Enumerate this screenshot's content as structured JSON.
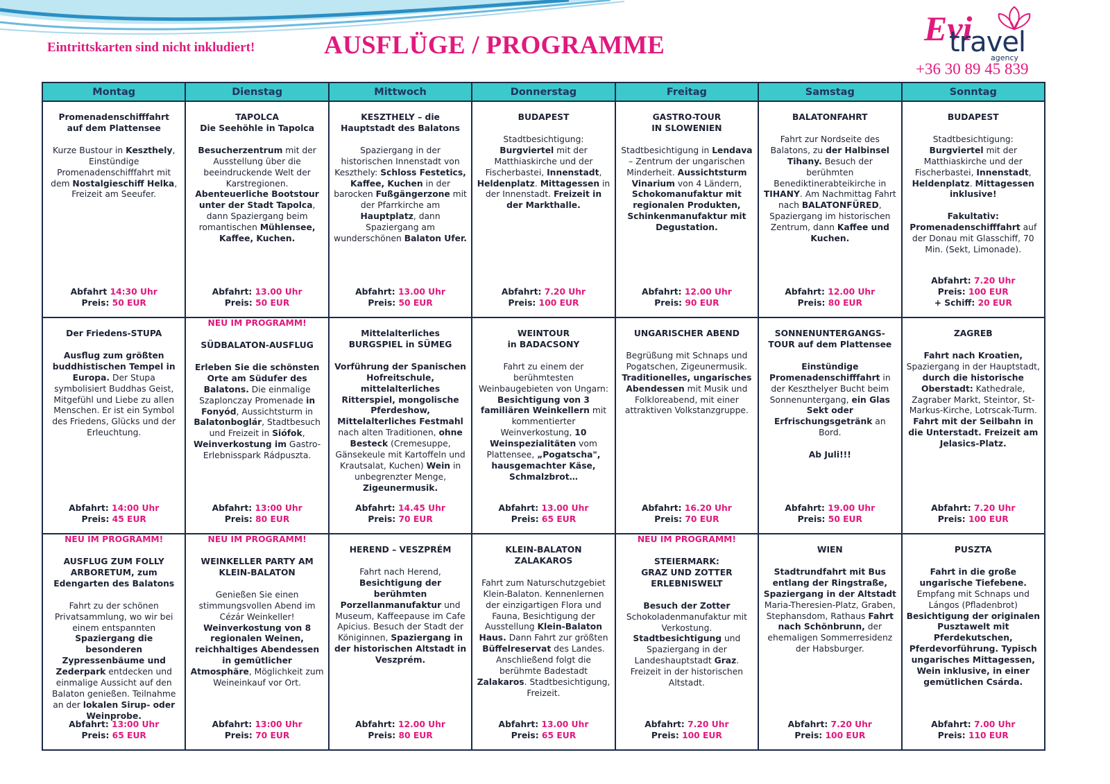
{
  "header": {
    "note": "Eintrittskarten sind nicht inkludiert!",
    "title": "AUSFLÜGE / PROGRAMME",
    "logo": {
      "name": "Evi",
      "brand": "travel",
      "sub": "agency"
    },
    "phone": "+36 30 89 45 839"
  },
  "table": {
    "days": [
      "Montag",
      "Dienstag",
      "Mittwoch",
      "Donnerstag",
      "Freitag",
      "Samstag",
      "Sonntag"
    ],
    "rows": [
      [
        {
          "title": [
            "Promenadenschifffahrt",
            "auf dem Plattensee"
          ],
          "body": [
            [
              "Kurze Bustour in ",
              {
                "b": "Keszthely"
              },
              ", Einstündige Promenadenschifffahrt mit dem ",
              {
                "b": "Nostalgieschiff Helka"
              },
              ", Freizeit am Seeufer."
            ]
          ],
          "depart": {
            "label": "Abfahrt",
            "value": "14:30 Uhr"
          },
          "price": [
            {
              "label": "Preis:",
              "value": "50 EUR"
            }
          ]
        },
        {
          "title": [
            "TAPOLCA",
            "Die Seehöhle in Tapolca"
          ],
          "body": [
            [
              {
                "b": "Besucherzentrum"
              },
              " mit der Ausstellung über die beeindruckende Welt der Karstregionen. ",
              {
                "b": "Abenteuerliche Bootstour unter der Stadt Tapolca"
              },
              ", dann Spaziergang beim romantischen ",
              {
                "b": "Mühlensee, Kaffee, Kuchen."
              }
            ]
          ],
          "depart": {
            "label": "Abfahrt:",
            "value": "13.00 Uhr"
          },
          "price": [
            {
              "label": "Preis:",
              "value": "50 EUR"
            }
          ]
        },
        {
          "title": [
            "KESZTHELY – die",
            "Hauptstadt des Balatons"
          ],
          "body": [
            [
              "Spaziergang in der historischen Innenstadt von Keszthely: ",
              {
                "b": "Schloss Festetics, Kaffee, Kuchen"
              },
              " in der barocken ",
              {
                "b": "Fußgängerzone"
              },
              " mit der Pfarrkirche am ",
              {
                "b": "Hauptplatz"
              },
              ", dann Spaziergang am wunderschönen ",
              {
                "b": "Balaton Ufer."
              }
            ]
          ],
          "depart": {
            "label": "Abfahrt:",
            "value": "13.00 Uhr"
          },
          "price": [
            {
              "label": "Preis:",
              "value": "50 EUR"
            }
          ]
        },
        {
          "title": [
            "BUDAPEST"
          ],
          "body": [
            [
              "Stadtbesichtigung: ",
              {
                "b": "Burgviertel"
              },
              " mit der Matthiaskirche und der Fischerbastei, ",
              {
                "b": "Innenstadt"
              },
              ", ",
              {
                "b": "Heldenplatz"
              },
              ". ",
              {
                "b": "Mittagessen"
              },
              " in der Innenstadt. ",
              {
                "b": "Freizeit in der Markthalle."
              }
            ]
          ],
          "depart": {
            "label": "Abfahrt:",
            "value": "7.20 Uhr"
          },
          "price": [
            {
              "label": "Preis:",
              "value": "100 EUR"
            }
          ]
        },
        {
          "title": [
            "GASTRO-TOUR",
            "IN SLOWENIEN"
          ],
          "body": [
            [
              "Stadtbesichtigung in ",
              {
                "b": "Lendava"
              },
              " – Zentrum der ungarischen Minderheit. ",
              {
                "b": "Aussichtsturm Vinarium"
              },
              " von 4 Ländern, ",
              {
                "b": "Schokomanufaktur mit regionalen Produkten, Schinkenmanufaktur mit Degustation."
              }
            ]
          ],
          "depart": {
            "label": "Abfahrt:",
            "value": "12.00 Uhr"
          },
          "price": [
            {
              "label": "Preis:",
              "value": "90 EUR"
            }
          ]
        },
        {
          "title": [
            "BALATONFAHRT"
          ],
          "body": [
            [
              "Fahrt zur Nordseite des Balatons, zu ",
              {
                "b": "der Halbinsel Tihany."
              },
              " Besuch der berühmten Benediktinerabteikirche in ",
              {
                "b": "TIHANY"
              },
              ". Am Nachmittag Fahrt nach ",
              {
                "b": "BALATONFÜRED"
              },
              ", Spaziergang im historischen Zentrum, dann ",
              {
                "b": "Kaffee und Kuchen."
              }
            ]
          ],
          "depart": {
            "label": "Abfahrt:",
            "value": "12.00 Uhr"
          },
          "price": [
            {
              "label": "Preis:",
              "value": "80 EUR"
            }
          ]
        },
        {
          "title": [
            "BUDAPEST"
          ],
          "body": [
            [
              "Stadtbesichtigung: ",
              {
                "b": "Burgviertel"
              },
              " mit der Matthiaskirche und der Fischerbastei, ",
              {
                "b": "Innenstadt"
              },
              ", ",
              {
                "b": "Heldenplatz"
              },
              ". ",
              {
                "b": "Mittagessen inklusive!"
              }
            ],
            [
              {
                "b": "Fakultativ: Promenadenschifffahrt"
              },
              " auf der Donau mit Glasschiff, 70 Min. (Sekt, Limonade)."
            ]
          ],
          "depart": {
            "label": "Abfahrt:",
            "value": "7.20 Uhr"
          },
          "price": [
            {
              "label": "Preis:",
              "value": "100 EUR"
            },
            {
              "label": "+ Schiff:",
              "value": "20 EUR"
            }
          ]
        }
      ],
      [
        {
          "title": [
            "Der Friedens-STUPA"
          ],
          "body": [
            [
              {
                "b": "Ausflug zum größten buddhistischen Tempel in Europa."
              },
              " Der Stupa symbolisiert Buddhas Geist, Mitgefühl und Liebe zu allen Menschen. Er ist ein Symbol des Friedens, Glücks und der Erleuchtung."
            ]
          ],
          "depart": {
            "label": "Abfahrt:",
            "value": "14:00 Uhr"
          },
          "price": [
            {
              "label": "Preis:",
              "value": "45 EUR"
            }
          ]
        },
        {
          "badge": "NEU IM PROGRAMM!",
          "title": [
            "SÜDBALATON-AUSFLUG"
          ],
          "body": [
            [
              {
                "b": "Erleben Sie die schönsten Orte am Südufer des Balatons."
              },
              " Die einmalige Szaplonczay Promenade ",
              {
                "b": "in Fonyód"
              },
              ", Aussichtsturm in ",
              {
                "b": "Balatonboglár"
              },
              ", Stadtbesuch und Freizeit in ",
              {
                "b": "Siófok"
              },
              ", ",
              {
                "b": "Weinverkostung im"
              },
              " Gastro-Erlebnisspark Rádpuszta."
            ]
          ],
          "depart": {
            "label": "Abfahrt:",
            "value": "13:00 Uhr"
          },
          "price": [
            {
              "label": "Preis:",
              "value": "80 EUR"
            }
          ]
        },
        {
          "title": [
            "Mittelalterliches",
            "BURGSPIEL in SÜMEG"
          ],
          "body": [
            [
              {
                "b": "Vorführung der Spanischen Hofreitschule, mittelalterliches Ritterspiel, mongolische Pferdeshow, Mittelalterliches Festmahl"
              },
              " nach alten Traditionen, ",
              {
                "b": "ohne Besteck"
              },
              " (Cremesuppe, Gänsekeule mit Kartoffeln und Krautsalat, Kuchen) ",
              {
                "b": "Wein"
              },
              " in unbegrenzter Menge, ",
              {
                "b": "Zigeunermusik."
              }
            ]
          ],
          "depart": {
            "label": "Abfahrt:",
            "value": "14.45 Uhr"
          },
          "price": [
            {
              "label": "Preis:",
              "value": "70 EUR"
            }
          ]
        },
        {
          "title": [
            "WEINTOUR",
            "in BADACSONY"
          ],
          "body": [
            [
              "Fahrt zu einem der berühmtesten Weinbaugebieten von Ungarn: ",
              {
                "b": "Besichtigung von 3 familiären Weinkellern"
              },
              " mit kommentierter Weinverkostung, ",
              {
                "b": "10 Weinspezialitäten"
              },
              " vom Plattensee, ",
              {
                "b": "„Pogatscha\", hausgemachter Käse, Schmalzbrot…"
              }
            ]
          ],
          "depart": {
            "label": "Abfahrt:",
            "value": "13.00 Uhr"
          },
          "price": [
            {
              "label": "Preis:",
              "value": "65 EUR"
            }
          ]
        },
        {
          "title": [
            "UNGARISCHER ABEND"
          ],
          "body": [
            [
              "Begrüßung mit Schnaps und Pogatschen, Zigeunermusik. ",
              {
                "b": "Traditionelles, ungarisches Abendessen"
              },
              " mit Musik und Folkloreabend, mit einer attraktiven Volkstanzgruppe."
            ]
          ],
          "depart": {
            "label": "Abfahrt:",
            "value": "16.20 Uhr"
          },
          "price": [
            {
              "label": "Preis:",
              "value": "70 EUR"
            }
          ]
        },
        {
          "title": [
            "SONNENUNTERGANGS-",
            "TOUR auf dem Plattensee"
          ],
          "body": [
            [
              {
                "b": "Einstündige Promenadenschifffahrt"
              },
              " in der Keszthelyer Bucht beim Sonnenuntergang, ",
              {
                "b": "ein Glas Sekt oder Erfrischungsgetränk"
              },
              " an Bord."
            ],
            [
              {
                "b": "Ab Juli!!!"
              }
            ]
          ],
          "depart": {
            "label": "Abfahrt:",
            "value": "19.00 Uhr"
          },
          "price": [
            {
              "label": "Preis:",
              "value": "50 EUR"
            }
          ]
        },
        {
          "title": [
            "ZAGREB"
          ],
          "body": [
            [
              {
                "b": "Fahrt nach Kroatien,"
              },
              " Spaziergang in der Hauptstadt, ",
              {
                "b": "durch die historische Oberstadt:"
              },
              " Kathedrale, Zagraber Markt, Steintor, St-Markus-Kirche, Lotrscak-Turm. ",
              {
                "b": "Fahrt mit der Seilbahn in die Unterstadt. Freizeit am Jelasics-Platz."
              }
            ]
          ],
          "depart": {
            "label": "Abfahrt:",
            "value": "7.20 Uhr"
          },
          "price": [
            {
              "label": "Preis:",
              "value": "100 EUR"
            }
          ]
        }
      ],
      [
        {
          "badge": "NEU IM PROGRAMM!",
          "title": [
            "AUSFLUG ZUM FOLLY ARBORETUM, zum Edengarten des Balatons"
          ],
          "body": [
            [
              "Fahrt zu der schönen Privatsammlung, wo wir bei einem entspannten ",
              {
                "b": "Spaziergang die besonderen Zypressenbäume und Zederpark"
              },
              " entdecken und einmalige Aussicht auf den Balaton genießen. Teilnahme an der ",
              {
                "b": "lokalen Sirup- oder Weinprobe."
              }
            ]
          ],
          "depart": {
            "label": "Abfahrt:",
            "value": "13:00 Uhr"
          },
          "price": [
            {
              "label": "Preis:",
              "value": "65 EUR"
            }
          ]
        },
        {
          "badge": "NEU IM PROGRAMM!",
          "title": [
            "WEINKELLER PARTY AM",
            "KLEIN-BALATON"
          ],
          "body": [
            [
              "Genießen Sie einen stimmungsvollen Abend im Cézár Weinkeller! ",
              {
                "b": "Weinverkostung von 8 regionalen Weinen, reichhaltiges Abendessen in gemütlicher Atmosphäre"
              },
              ", Möglichkeit zum Weineinkauf vor Ort."
            ]
          ],
          "depart": {
            "label": "Abfahrt:",
            "value": "13:00 Uhr"
          },
          "price": [
            {
              "label": "Preis:",
              "value": "70 EUR"
            }
          ]
        },
        {
          "title": [
            "HEREND – VESZPRÉM"
          ],
          "body": [
            [
              "Fahrt nach Herend, ",
              {
                "b": "Besichtigung der berühmten Porzellanmanufaktur"
              },
              " und Museum, Kaffeepause im Cafe Apicius. Besuch der Stadt der Königinnen, ",
              {
                "b": "Spaziergang in der historischen Altstadt in Veszprém."
              }
            ]
          ],
          "depart": {
            "label": "Abfahrt:",
            "value": "12.00 Uhr"
          },
          "price": [
            {
              "label": "Preis:",
              "value": "80 EUR"
            }
          ]
        },
        {
          "title": [
            "KLEIN-BALATON",
            "ZALAKAROS"
          ],
          "body": [
            [
              "Fahrt zum Naturschutzgebiet Klein-Balaton. Kennenlernen der einzigartigen Flora und Fauna, Besichtigung der Ausstellung ",
              {
                "b": "Klein-Balaton Haus."
              },
              " Dann Fahrt zur größten ",
              {
                "b": "Büffelreservat"
              },
              " des Landes. Anschließend folgt die berühmte Badestadt ",
              {
                "b": "Zalakaros"
              },
              ". Stadtbesichtigung, Freizeit."
            ]
          ],
          "depart": {
            "label": "Abfahrt:",
            "value": "13.00 Uhr"
          },
          "price": [
            {
              "label": "Preis:",
              "value": "65 EUR"
            }
          ]
        },
        {
          "badge": "NEU IM PROGRAMM!",
          "title": [
            "STEIERMARK:",
            "GRAZ UND ZOTTER",
            "ERLEBNISWELT"
          ],
          "body": [
            [
              {
                "b": "Besuch der Zotter"
              },
              " Schokoladenmanufaktur mit Verkostung. ",
              {
                "b": "Stadtbesichtigung"
              },
              " und Spaziergang in der Landeshauptstadt ",
              {
                "b": "Graz"
              },
              ". Freizeit in der historischen Altstadt."
            ]
          ],
          "depart": {
            "label": "Abfahrt:",
            "value": "7.20 Uhr"
          },
          "price": [
            {
              "label": "Preis:",
              "value": "100 EUR"
            }
          ]
        },
        {
          "title": [
            "WIEN"
          ],
          "body": [
            [
              {
                "b": "Stadtrundfahrt mit Bus entlang der Ringstraße, Spaziergang in der Altstadt"
              },
              " Maria-Theresien-Platz, Graben, Stephansdom, Rathaus ",
              {
                "b": "Fahrt nach Schönbrunn,"
              },
              " der ehemaligen Sommerresidenz der Habsburger."
            ]
          ],
          "depart": {
            "label": "Abfahrt:",
            "value": "7.20 Uhr"
          },
          "price": [
            {
              "label": "Preis:",
              "value": "100 EUR"
            }
          ]
        },
        {
          "title": [
            "PUSZTA"
          ],
          "body": [
            [
              {
                "b": "Fahrt in die große ungarische Tiefebene."
              },
              " Empfang mit Schnaps und Lángos (Pfladenbrot) ",
              {
                "b": "Besichtigung der originalen Pusztawelt mit Pferdekutschen, Pferdevorführung. Typisch ungarisches Mittagessen, Wein inklusive, in einer gemütlichen Csárda."
              }
            ]
          ],
          "depart": {
            "label": "Abfahrt:",
            "value": "7.00 Uhr"
          },
          "price": [
            {
              "label": "Preis:",
              "value": "110 EUR"
            }
          ]
        }
      ]
    ]
  }
}
